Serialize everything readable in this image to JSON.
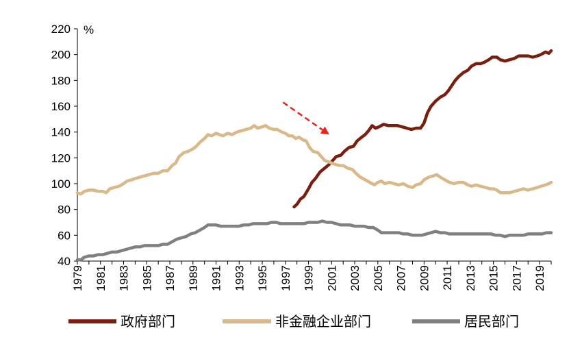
{
  "chart_data": {
    "type": "line",
    "unit": "%",
    "ylim": [
      40,
      220
    ],
    "yticks": [
      40,
      60,
      80,
      100,
      120,
      140,
      160,
      180,
      200,
      220
    ],
    "xlim": [
      1979,
      2020
    ],
    "xticks": [
      1979,
      1981,
      1983,
      1985,
      1987,
      1989,
      1991,
      1993,
      1995,
      1997,
      1999,
      2001,
      2003,
      2005,
      2007,
      2009,
      2011,
      2013,
      2015,
      2017,
      2019
    ],
    "grid": false,
    "legend_position": "bottom",
    "series": [
      {
        "name": "政府部门",
        "color": "#7a1e10",
        "points": [
          [
            1997.75,
            82
          ],
          [
            1998.0,
            84
          ],
          [
            1998.3,
            88
          ],
          [
            1998.6,
            90
          ],
          [
            1999.0,
            96
          ],
          [
            1999.3,
            101
          ],
          [
            1999.6,
            104
          ],
          [
            2000.0,
            109
          ],
          [
            2000.4,
            112
          ],
          [
            2000.8,
            115
          ],
          [
            2001.1,
            118
          ],
          [
            2001.4,
            121
          ],
          [
            2001.8,
            122
          ],
          [
            2002.1,
            125
          ],
          [
            2002.5,
            128
          ],
          [
            2002.9,
            129
          ],
          [
            2003.2,
            133
          ],
          [
            2003.6,
            136
          ],
          [
            2003.9,
            138
          ],
          [
            2004.2,
            141
          ],
          [
            2004.5,
            145
          ],
          [
            2004.8,
            143
          ],
          [
            2005.1,
            144
          ],
          [
            2005.5,
            146
          ],
          [
            2005.9,
            145
          ],
          [
            2006.3,
            145
          ],
          [
            2006.7,
            145
          ],
          [
            2007.1,
            144
          ],
          [
            2007.5,
            143
          ],
          [
            2007.9,
            142
          ],
          [
            2008.3,
            143
          ],
          [
            2008.7,
            143
          ],
          [
            2009.0,
            147
          ],
          [
            2009.3,
            155
          ],
          [
            2009.6,
            160
          ],
          [
            2010.0,
            164
          ],
          [
            2010.4,
            167
          ],
          [
            2010.8,
            169
          ],
          [
            2011.1,
            172
          ],
          [
            2011.4,
            176
          ],
          [
            2011.7,
            180
          ],
          [
            2012.0,
            183
          ],
          [
            2012.4,
            186
          ],
          [
            2012.8,
            188
          ],
          [
            2013.1,
            191
          ],
          [
            2013.5,
            193
          ],
          [
            2013.9,
            193
          ],
          [
            2014.2,
            194
          ],
          [
            2014.6,
            196
          ],
          [
            2014.9,
            198
          ],
          [
            2015.3,
            198
          ],
          [
            2015.6,
            196
          ],
          [
            2016.0,
            195
          ],
          [
            2016.4,
            196
          ],
          [
            2016.8,
            197
          ],
          [
            2017.2,
            199
          ],
          [
            2017.6,
            199
          ],
          [
            2018.0,
            199
          ],
          [
            2018.4,
            198
          ],
          [
            2018.8,
            199
          ],
          [
            2019.1,
            200
          ],
          [
            2019.5,
            202
          ],
          [
            2019.8,
            201
          ],
          [
            2020.0,
            203
          ]
        ]
      },
      {
        "name": "非金融企业部门",
        "color": "#d9b98a",
        "points": [
          [
            1979.0,
            93
          ],
          [
            1979.3,
            92
          ],
          [
            1979.6,
            94
          ],
          [
            1980.0,
            95
          ],
          [
            1980.4,
            95
          ],
          [
            1980.8,
            94
          ],
          [
            1981.2,
            94
          ],
          [
            1981.5,
            93
          ],
          [
            1981.8,
            96
          ],
          [
            1982.2,
            97
          ],
          [
            1982.6,
            98
          ],
          [
            1983.0,
            100
          ],
          [
            1983.3,
            102
          ],
          [
            1983.7,
            103
          ],
          [
            1984.0,
            104
          ],
          [
            1984.4,
            105
          ],
          [
            1984.8,
            106
          ],
          [
            1985.2,
            107
          ],
          [
            1985.6,
            108
          ],
          [
            1986.0,
            108
          ],
          [
            1986.4,
            110
          ],
          [
            1986.8,
            110
          ],
          [
            1987.2,
            114
          ],
          [
            1987.5,
            116
          ],
          [
            1987.8,
            121
          ],
          [
            1988.2,
            124
          ],
          [
            1988.6,
            125
          ],
          [
            1989.0,
            127
          ],
          [
            1989.3,
            129
          ],
          [
            1989.6,
            132
          ],
          [
            1990.0,
            135
          ],
          [
            1990.3,
            138
          ],
          [
            1990.6,
            137
          ],
          [
            1991.0,
            139
          ],
          [
            1991.3,
            138
          ],
          [
            1991.6,
            137
          ],
          [
            1992.0,
            139
          ],
          [
            1992.4,
            138
          ],
          [
            1992.8,
            140
          ],
          [
            1993.2,
            141
          ],
          [
            1993.6,
            142
          ],
          [
            1994.0,
            143
          ],
          [
            1994.3,
            145
          ],
          [
            1994.6,
            143
          ],
          [
            1995.0,
            144
          ],
          [
            1995.3,
            145
          ],
          [
            1995.6,
            143
          ],
          [
            1996.0,
            142
          ],
          [
            1996.3,
            142
          ],
          [
            1996.7,
            140
          ],
          [
            1997.0,
            139
          ],
          [
            1997.3,
            137
          ],
          [
            1997.6,
            137
          ],
          [
            1997.9,
            135
          ],
          [
            1998.2,
            136
          ],
          [
            1998.5,
            134
          ],
          [
            1998.8,
            133
          ],
          [
            1999.1,
            128
          ],
          [
            1999.4,
            125
          ],
          [
            1999.8,
            124
          ],
          [
            2000.1,
            121
          ],
          [
            2000.4,
            118
          ],
          [
            2000.7,
            117
          ],
          [
            2001.0,
            116
          ],
          [
            2001.3,
            115
          ],
          [
            2001.7,
            114
          ],
          [
            2002.0,
            114
          ],
          [
            2002.4,
            112
          ],
          [
            2002.8,
            111
          ],
          [
            2003.1,
            108
          ],
          [
            2003.5,
            105
          ],
          [
            2003.9,
            103
          ],
          [
            2004.3,
            101
          ],
          [
            2004.7,
            99
          ],
          [
            2005.0,
            101
          ],
          [
            2005.3,
            102
          ],
          [
            2005.6,
            100
          ],
          [
            2006.0,
            101
          ],
          [
            2006.4,
            100
          ],
          [
            2006.8,
            99
          ],
          [
            2007.2,
            100
          ],
          [
            2007.6,
            98
          ],
          [
            2008.0,
            97
          ],
          [
            2008.3,
            99
          ],
          [
            2008.7,
            100
          ],
          [
            2009.0,
            103
          ],
          [
            2009.4,
            105
          ],
          [
            2009.8,
            106
          ],
          [
            2010.1,
            107
          ],
          [
            2010.4,
            105
          ],
          [
            2010.8,
            103
          ],
          [
            2011.2,
            101
          ],
          [
            2011.6,
            100
          ],
          [
            2012.0,
            101
          ],
          [
            2012.4,
            101
          ],
          [
            2012.8,
            99
          ],
          [
            2013.1,
            98
          ],
          [
            2013.5,
            99
          ],
          [
            2013.9,
            98
          ],
          [
            2014.3,
            97
          ],
          [
            2014.7,
            96
          ],
          [
            2015.0,
            96
          ],
          [
            2015.3,
            95
          ],
          [
            2015.6,
            93
          ],
          [
            2016.0,
            93
          ],
          [
            2016.4,
            93
          ],
          [
            2016.8,
            94
          ],
          [
            2017.2,
            95
          ],
          [
            2017.6,
            96
          ],
          [
            2018.0,
            95
          ],
          [
            2018.4,
            96
          ],
          [
            2018.8,
            97
          ],
          [
            2019.1,
            98
          ],
          [
            2019.5,
            99
          ],
          [
            2019.8,
            100
          ],
          [
            2020.0,
            101
          ]
        ]
      },
      {
        "name": "居民部门",
        "color": "#808080",
        "points": [
          [
            1979.0,
            41
          ],
          [
            1979.3,
            41
          ],
          [
            1979.6,
            43
          ],
          [
            1980.0,
            44
          ],
          [
            1980.4,
            44
          ],
          [
            1980.8,
            45
          ],
          [
            1981.2,
            45
          ],
          [
            1981.6,
            46
          ],
          [
            1982.0,
            47
          ],
          [
            1982.4,
            47
          ],
          [
            1982.8,
            48
          ],
          [
            1983.2,
            49
          ],
          [
            1983.6,
            50
          ],
          [
            1984.0,
            51
          ],
          [
            1984.4,
            51
          ],
          [
            1984.8,
            52
          ],
          [
            1985.2,
            52
          ],
          [
            1985.6,
            52
          ],
          [
            1986.0,
            52
          ],
          [
            1986.4,
            53
          ],
          [
            1986.8,
            53
          ],
          [
            1987.2,
            55
          ],
          [
            1987.6,
            57
          ],
          [
            1988.0,
            58
          ],
          [
            1988.4,
            59
          ],
          [
            1988.8,
            61
          ],
          [
            1989.2,
            62
          ],
          [
            1989.6,
            64
          ],
          [
            1990.0,
            66
          ],
          [
            1990.3,
            68
          ],
          [
            1990.6,
            68
          ],
          [
            1991.0,
            68
          ],
          [
            1991.4,
            67
          ],
          [
            1991.8,
            67
          ],
          [
            1992.2,
            67
          ],
          [
            1992.6,
            67
          ],
          [
            1993.0,
            67
          ],
          [
            1993.4,
            68
          ],
          [
            1993.8,
            68
          ],
          [
            1994.2,
            69
          ],
          [
            1994.6,
            69
          ],
          [
            1995.0,
            69
          ],
          [
            1995.4,
            69
          ],
          [
            1995.8,
            70
          ],
          [
            1996.2,
            70
          ],
          [
            1996.6,
            69
          ],
          [
            1997.0,
            69
          ],
          [
            1997.4,
            69
          ],
          [
            1997.8,
            69
          ],
          [
            1998.2,
            69
          ],
          [
            1998.6,
            69
          ],
          [
            1999.0,
            70
          ],
          [
            1999.4,
            70
          ],
          [
            1999.8,
            70
          ],
          [
            2000.2,
            71
          ],
          [
            2000.6,
            70
          ],
          [
            2001.0,
            70
          ],
          [
            2001.4,
            69
          ],
          [
            2001.8,
            68
          ],
          [
            2002.2,
            68
          ],
          [
            2002.6,
            68
          ],
          [
            2003.0,
            67
          ],
          [
            2003.4,
            67
          ],
          [
            2003.8,
            67
          ],
          [
            2004.2,
            66
          ],
          [
            2004.6,
            66
          ],
          [
            2005.0,
            64
          ],
          [
            2005.3,
            62
          ],
          [
            2005.6,
            62
          ],
          [
            2006.0,
            62
          ],
          [
            2006.4,
            62
          ],
          [
            2006.8,
            62
          ],
          [
            2007.2,
            61
          ],
          [
            2007.6,
            61
          ],
          [
            2008.0,
            60
          ],
          [
            2008.4,
            60
          ],
          [
            2008.8,
            60
          ],
          [
            2009.2,
            61
          ],
          [
            2009.6,
            62
          ],
          [
            2010.0,
            63
          ],
          [
            2010.4,
            62
          ],
          [
            2010.8,
            62
          ],
          [
            2011.2,
            61
          ],
          [
            2011.6,
            61
          ],
          [
            2012.0,
            61
          ],
          [
            2012.4,
            61
          ],
          [
            2012.8,
            61
          ],
          [
            2013.2,
            61
          ],
          [
            2013.6,
            61
          ],
          [
            2014.0,
            61
          ],
          [
            2014.4,
            61
          ],
          [
            2014.8,
            61
          ],
          [
            2015.2,
            60
          ],
          [
            2015.6,
            60
          ],
          [
            2016.0,
            59
          ],
          [
            2016.4,
            60
          ],
          [
            2016.8,
            60
          ],
          [
            2017.2,
            60
          ],
          [
            2017.6,
            60
          ],
          [
            2018.0,
            61
          ],
          [
            2018.4,
            61
          ],
          [
            2018.8,
            61
          ],
          [
            2019.2,
            61
          ],
          [
            2019.6,
            62
          ],
          [
            2020.0,
            62
          ]
        ]
      }
    ],
    "annotations": [
      {
        "type": "dashed-arrow",
        "color": "#e8231c",
        "from": [
          1996.8,
          163
        ],
        "to": [
          2000.8,
          138
        ]
      }
    ]
  }
}
